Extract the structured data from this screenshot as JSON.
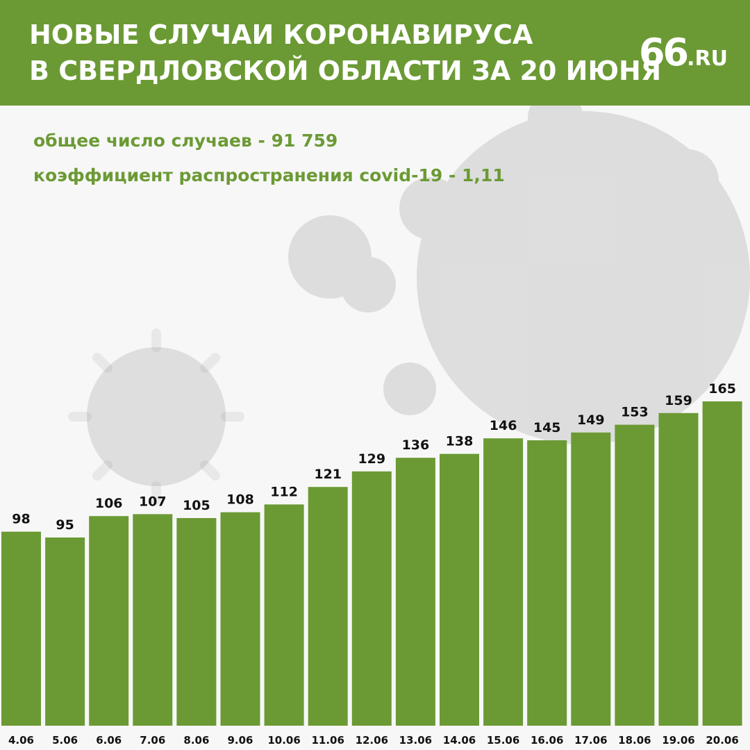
{
  "header": {
    "title_line1": "НОВЫЕ СЛУЧАИ КОРОНАВИРУСА",
    "title_line2": "В СВЕРДЛОВСКОЙ ОБЛАСТИ ЗА 20 ИЮНЯ",
    "logo": "66.RU"
  },
  "stats": {
    "total_cases": "общее число случаев - 91 759",
    "spread_rate": "коэффициент распространения covid-19 - 1,11"
  },
  "colors": {
    "accent": "#6b9a34",
    "bar": "#6b9a34",
    "label_text": "#111111",
    "background": "#f7f7f7"
  },
  "chart_data": {
    "type": "bar",
    "categories": [
      "4.06",
      "5.06",
      "6.06",
      "7.06",
      "8.06",
      "9.06",
      "10.06",
      "11.06",
      "12.06",
      "13.06",
      "14.06",
      "15.06",
      "16.06",
      "17.06",
      "18.06",
      "19.06",
      "20.06"
    ],
    "values": [
      98,
      95,
      106,
      107,
      105,
      108,
      112,
      121,
      129,
      136,
      138,
      146,
      145,
      149,
      153,
      159,
      165
    ],
    "title": "",
    "xlabel": "",
    "ylabel": "",
    "grid": false,
    "legend": "none"
  }
}
